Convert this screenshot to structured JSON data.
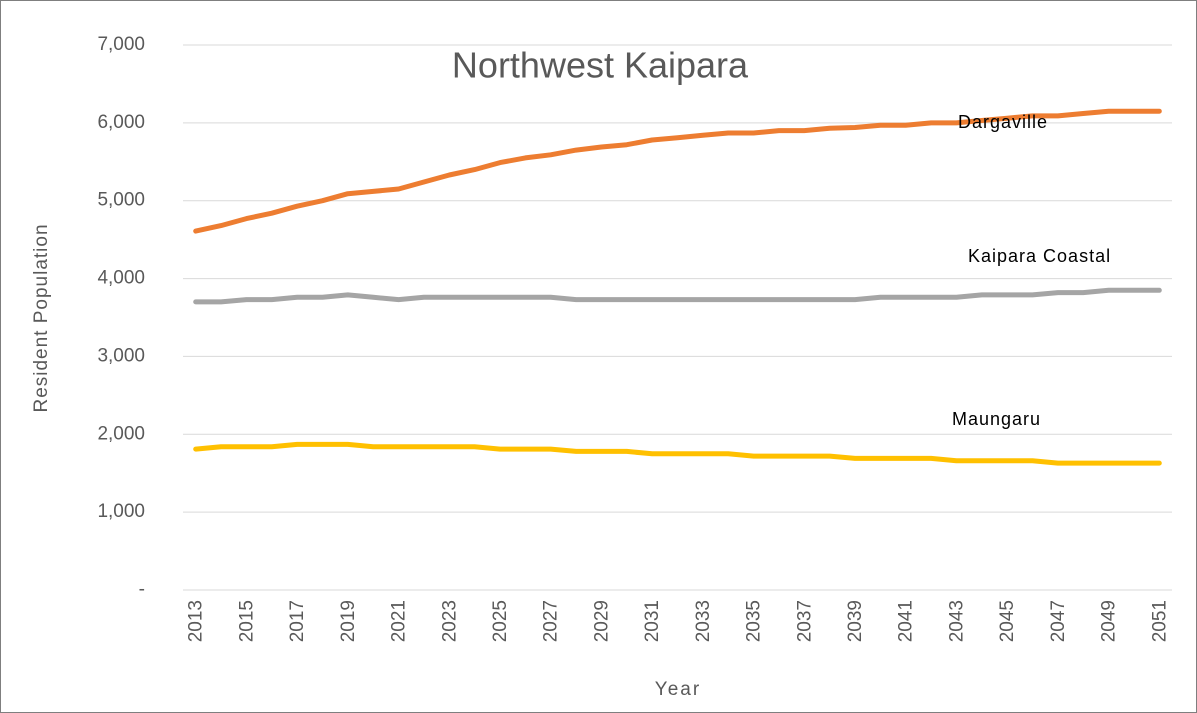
{
  "chart_data": {
    "type": "line",
    "title": "Northwest Kaipara",
    "x_label": "Year",
    "y_label": "Resident Population",
    "categories": [
      2013,
      null,
      2015,
      null,
      2017,
      null,
      2019,
      null,
      2021,
      null,
      2023,
      null,
      2025,
      null,
      2027,
      null,
      2029,
      null,
      2031,
      null,
      2033,
      null,
      2035,
      null,
      2037,
      null,
      2039,
      null,
      2041,
      null,
      2043,
      null,
      2045,
      null,
      2047,
      null,
      2049,
      null,
      2051
    ],
    "series": [
      {
        "name": "Dargaville",
        "color": "#ed7d31",
        "values": [
          4610,
          4680,
          4770,
          4840,
          4930,
          5000,
          5090,
          5120,
          5150,
          5240,
          5330,
          5400,
          5490,
          5550,
          5590,
          5650,
          5690,
          5720,
          5780,
          5810,
          5840,
          5870,
          5870,
          5900,
          5900,
          5930,
          5940,
          5970,
          5970,
          6000,
          6000,
          6030,
          6060,
          6090,
          6090,
          6120,
          6150,
          6150,
          6150
        ]
      },
      {
        "name": "Kaipara Coastal",
        "color": "#a5a5a5",
        "values": [
          3700,
          3700,
          3730,
          3730,
          3760,
          3760,
          3790,
          3760,
          3730,
          3760,
          3760,
          3760,
          3760,
          3760,
          3760,
          3730,
          3730,
          3730,
          3730,
          3730,
          3730,
          3730,
          3730,
          3730,
          3730,
          3730,
          3730,
          3760,
          3760,
          3760,
          3760,
          3790,
          3790,
          3790,
          3820,
          3820,
          3850,
          3850,
          3850
        ]
      },
      {
        "name": "Maungaru",
        "color": "#ffc000",
        "values": [
          1810,
          1840,
          1840,
          1840,
          1870,
          1870,
          1870,
          1840,
          1840,
          1840,
          1840,
          1840,
          1810,
          1810,
          1810,
          1780,
          1780,
          1780,
          1750,
          1750,
          1750,
          1750,
          1720,
          1720,
          1720,
          1720,
          1690,
          1690,
          1690,
          1690,
          1660,
          1660,
          1660,
          1660,
          1630,
          1630,
          1630,
          1630,
          1630
        ]
      }
    ],
    "ylim": [
      0,
      7000
    ],
    "yticks": [
      {
        "value": 0,
        "label": "-"
      },
      {
        "value": 1000,
        "label": "1,000"
      },
      {
        "value": 2000,
        "label": "2,000"
      },
      {
        "value": 3000,
        "label": "3,000"
      },
      {
        "value": 4000,
        "label": "4,000"
      },
      {
        "value": 5000,
        "label": "5,000"
      },
      {
        "value": 6000,
        "label": "6,000"
      },
      {
        "value": 7000,
        "label": "7,000"
      }
    ],
    "grid": true
  }
}
